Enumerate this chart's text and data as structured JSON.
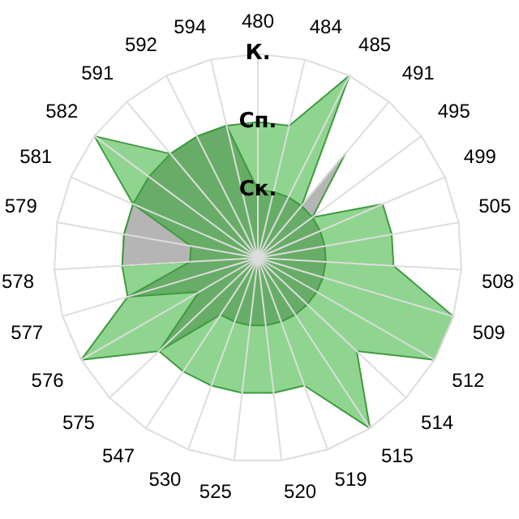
{
  "chart_data": {
    "type": "radar",
    "categories": [
      "480",
      "484",
      "485",
      "491",
      "495",
      "499",
      "505",
      "508",
      "509",
      "512",
      "514",
      "515",
      "519",
      "520",
      "525",
      "530",
      "547",
      "575",
      "576",
      "577",
      "578",
      "579",
      "581",
      "582",
      "591",
      "592",
      "594"
    ],
    "series": [
      {
        "color": "#8fd58f",
        "values": [
          2,
          2,
          3,
          1,
          1,
          2,
          2,
          2,
          3,
          3,
          2,
          3,
          2,
          2,
          2,
          2,
          2,
          2,
          3,
          2,
          2,
          2,
          2,
          3,
          2,
          2,
          2
        ]
      },
      {
        "color": "#b5b5b5",
        "values": [
          0,
          0,
          0,
          2,
          1,
          0,
          0,
          0,
          0,
          0,
          0,
          0,
          0,
          0,
          0,
          0,
          0,
          0,
          0,
          0,
          2,
          2,
          2,
          0,
          0,
          0,
          0
        ]
      },
      {
        "color": "#67ad67",
        "values": [
          1,
          1,
          1,
          1,
          1,
          1,
          1,
          1,
          1,
          1,
          1,
          1,
          1,
          1,
          1,
          1,
          1,
          2,
          1,
          2,
          1,
          1,
          2,
          2,
          2,
          2,
          2
        ]
      }
    ],
    "ylim": [
      0,
      3
    ],
    "yticks": [
      {
        "value": 1,
        "label": "Ск."
      },
      {
        "value": 2,
        "label": "Сп."
      },
      {
        "value": 3,
        "label": "К."
      }
    ],
    "grid": true,
    "legend": false,
    "marker": "none"
  }
}
